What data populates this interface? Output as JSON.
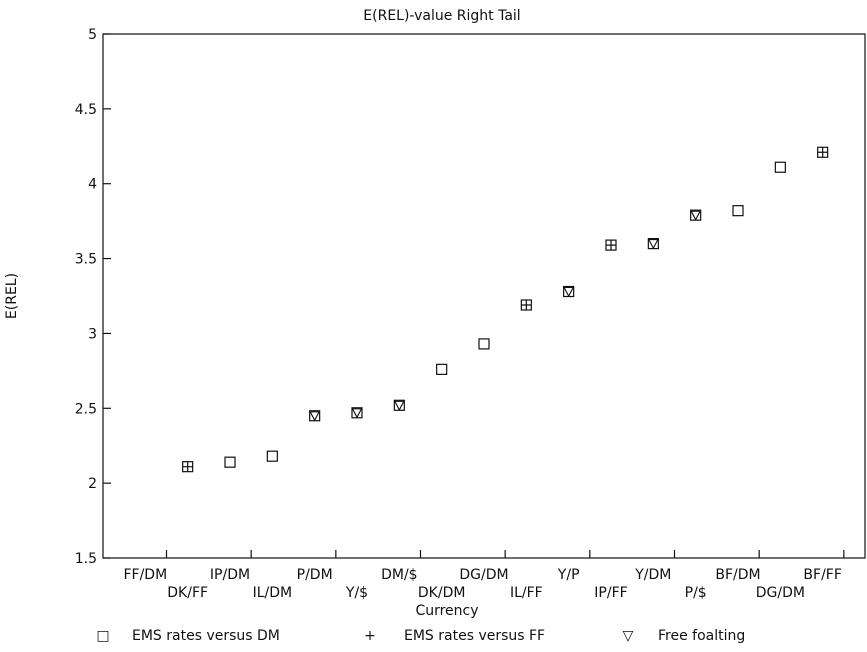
{
  "chart_data": {
    "type": "scatter",
    "title": "E(REL)-value Right Tail",
    "xlabel": "Currency",
    "ylabel": "E(REL)",
    "ylim": [
      1.5,
      5
    ],
    "yticks": [
      "1.5",
      "2",
      "2.5",
      "3",
      "3.5",
      "4",
      "4.5",
      "5"
    ],
    "categories": [
      "FF/DM",
      "DK/FF",
      "IP/DM",
      "IL/DM",
      "P/DM",
      "Y/$",
      "DM/$",
      "DK/DM",
      "DG/DM",
      "IL/FF",
      "Y/P",
      "IP/FF",
      "Y/DM",
      "P/$",
      "BF/DM",
      "DG/DM",
      "BF/FF"
    ],
    "points": [
      {
        "category": "DK/FF",
        "value": 2.11,
        "markers": [
          "square",
          "plus"
        ]
      },
      {
        "category": "IP/DM",
        "value": 2.14,
        "markers": [
          "square"
        ]
      },
      {
        "category": "IL/DM",
        "value": 2.18,
        "markers": [
          "square"
        ]
      },
      {
        "category": "P/DM",
        "value": 2.45,
        "markers": [
          "square",
          "triangle"
        ]
      },
      {
        "category": "Y/$",
        "value": 2.47,
        "markers": [
          "square",
          "triangle"
        ]
      },
      {
        "category": "DM/$",
        "value": 2.52,
        "markers": [
          "square",
          "triangle"
        ]
      },
      {
        "category": "DK/DM",
        "value": 2.76,
        "markers": [
          "square"
        ]
      },
      {
        "category": "DG/DM",
        "value": 2.93,
        "markers": [
          "square"
        ]
      },
      {
        "category": "IL/FF",
        "value": 3.19,
        "markers": [
          "square",
          "plus"
        ]
      },
      {
        "category": "Y/P",
        "value": 3.28,
        "markers": [
          "square",
          "triangle"
        ]
      },
      {
        "category": "IP/FF",
        "value": 3.59,
        "markers": [
          "square",
          "plus"
        ]
      },
      {
        "category": "Y/DM",
        "value": 3.6,
        "markers": [
          "square",
          "triangle"
        ]
      },
      {
        "category": "P/$",
        "value": 3.79,
        "markers": [
          "square",
          "triangle"
        ]
      },
      {
        "category": "BF/DM",
        "value": 3.82,
        "markers": [
          "square"
        ]
      },
      {
        "category": "DG/DM",
        "value": 4.11,
        "markers": [
          "square"
        ]
      },
      {
        "category": "BF/FF",
        "value": 4.21,
        "markers": [
          "square",
          "plus"
        ]
      }
    ],
    "legend": {
      "placement": "bottom",
      "entries": [
        {
          "marker": "square",
          "glyph": "□",
          "label": "EMS rates versus DM"
        },
        {
          "marker": "plus",
          "glyph": "+",
          "label": "EMS rates versus FF"
        },
        {
          "marker": "triangle",
          "glyph": "▽",
          "label": "Free foalting"
        }
      ]
    },
    "grid": false
  }
}
